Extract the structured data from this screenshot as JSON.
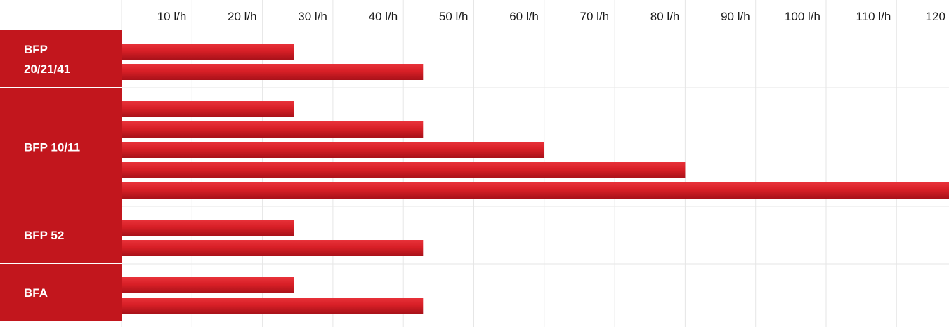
{
  "chart_data": {
    "type": "bar",
    "orientation": "horizontal",
    "title": "",
    "xlabel": "",
    "ylabel": "",
    "x_ticks": [
      "10 l/h",
      "20 l/h",
      "30 l/h",
      "40 l/h",
      "50 l/h",
      "60 l/h",
      "70 l/h",
      "80 l/h",
      "90 l/h",
      "100 l/h",
      "110 l/h",
      "120 l/h"
    ],
    "xlim": [
      0,
      117.5
    ],
    "grid": true,
    "groups": [
      {
        "label": "BFP 20/21/41",
        "values": [
          24.5,
          42.8
        ]
      },
      {
        "label": "BFP 10/11",
        "values": [
          24.5,
          42.8,
          60,
          80,
          117.5
        ]
      },
      {
        "label": "BFP 52",
        "values": [
          24.5,
          42.8
        ]
      },
      {
        "label": "BFA",
        "values": [
          24.5,
          42.8
        ]
      }
    ],
    "colors": {
      "bar": "#d81f26",
      "bar_dark": "#b5141b",
      "label_bg": "#c2161d",
      "grid": "#e6e6e6",
      "divider": "#e6e6e6"
    }
  }
}
